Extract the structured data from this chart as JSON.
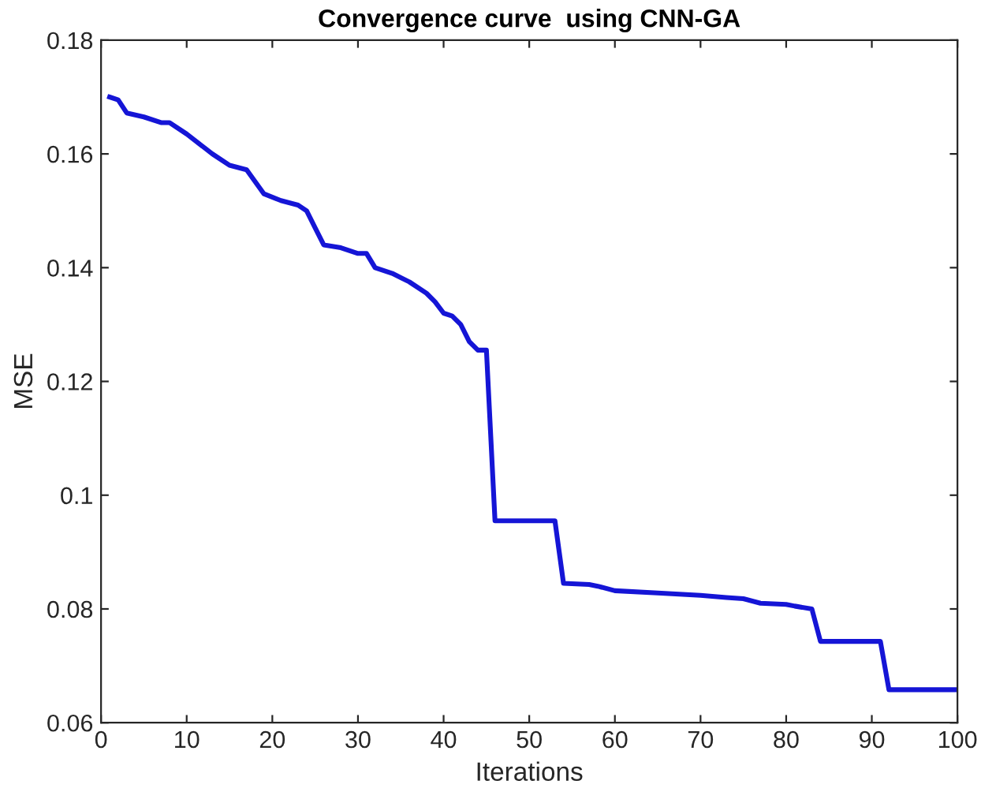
{
  "chart_data": {
    "type": "line",
    "title": "Convergence curve  using CNN-GA",
    "xlabel": "Iterations",
    "ylabel": "MSE",
    "xlim": [
      0,
      100
    ],
    "xticks": [
      0,
      10,
      20,
      30,
      40,
      50,
      60,
      70,
      80,
      90,
      100
    ],
    "ylim": [
      0.06,
      0.18
    ],
    "yticks": [
      0.06,
      0.08,
      {
        "value": 0.1,
        "label": "0.1"
      },
      0.12,
      0.14,
      0.16,
      0.18
    ],
    "grid": false,
    "legend": false,
    "marker": "none",
    "line_style": "solid",
    "series": [
      {
        "color": "#1515d6",
        "x": [
          1,
          2,
          3,
          5,
          7,
          8,
          10,
          13,
          15,
          17,
          19,
          21,
          23,
          24,
          25,
          26,
          28,
          30,
          31,
          32,
          34,
          36,
          38,
          39,
          40,
          41,
          42,
          43,
          44,
          45,
          46,
          53,
          54,
          57,
          58,
          60,
          65,
          70,
          73,
          75,
          77,
          80,
          81,
          83,
          84,
          91,
          92,
          100
        ],
        "values": [
          0.17,
          0.1695,
          0.1672,
          0.1665,
          0.1655,
          0.1655,
          0.1635,
          0.16,
          0.158,
          0.1572,
          0.153,
          0.1518,
          0.151,
          0.15,
          0.147,
          0.144,
          0.1435,
          0.1425,
          0.1425,
          0.14,
          0.139,
          0.1375,
          0.1355,
          0.134,
          0.132,
          0.1315,
          0.13,
          0.127,
          0.1255,
          0.1255,
          0.0955,
          0.0955,
          0.0845,
          0.0843,
          0.084,
          0.0832,
          0.0828,
          0.0824,
          0.082,
          0.0818,
          0.081,
          0.0808,
          0.0805,
          0.08,
          0.0743,
          0.0743,
          0.0658,
          0.0658
        ]
      }
    ]
  }
}
